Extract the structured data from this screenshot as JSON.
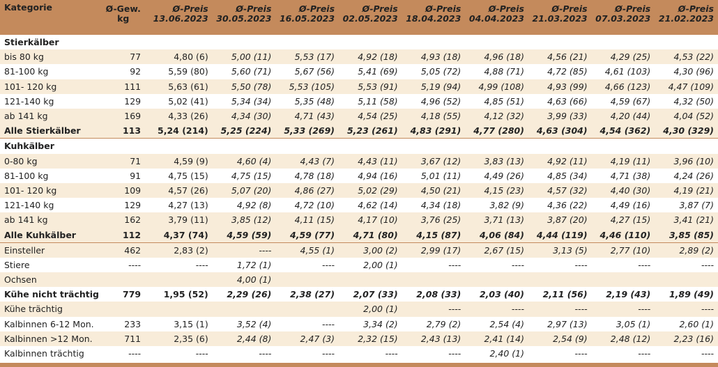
{
  "header": {
    "kategorie": "Kategorie",
    "gewicht_line1": "Ø-Gew.",
    "gewicht_line2": "kg",
    "preis_label": "Ø-Preis",
    "dates": [
      "13.06.2023",
      "30.05.2023",
      "16.05.2023",
      "02.05.2023",
      "18.04.2023",
      "04.04.2023",
      "21.03.2023",
      "07.03.2023",
      "21.02.2023"
    ]
  },
  "rows": [
    {
      "type": "section",
      "label": "Stierkälber"
    },
    {
      "type": "odd",
      "label": "bis 80 kg",
      "gew": "77",
      "values": [
        "4,80 (6)",
        "5,00 (11)",
        "5,53 (17)",
        "4,92 (18)",
        "4,93 (18)",
        "4,96 (18)",
        "4,56 (21)",
        "4,29 (25)",
        "4,53 (22)"
      ]
    },
    {
      "type": "even",
      "label": "81-100 kg",
      "gew": "92",
      "values": [
        "5,59 (80)",
        "5,60 (71)",
        "5,67 (56)",
        "5,41 (69)",
        "5,05 (72)",
        "4,88 (71)",
        "4,72 (85)",
        "4,61 (103)",
        "4,30 (96)"
      ]
    },
    {
      "type": "odd",
      "label": "101- 120 kg",
      "gew": "111",
      "values": [
        "5,63 (61)",
        "5,50 (78)",
        "5,53 (105)",
        "5,53 (91)",
        "5,19 (94)",
        "4,99 (108)",
        "4,93 (99)",
        "4,66 (123)",
        "4,47 (109)"
      ]
    },
    {
      "type": "even",
      "label": "121-140 kg",
      "gew": "129",
      "values": [
        "5,02 (41)",
        "5,34 (34)",
        "5,35 (48)",
        "5,11 (58)",
        "4,96 (52)",
        "4,85 (51)",
        "4,63 (66)",
        "4,59 (67)",
        "4,32 (50)"
      ]
    },
    {
      "type": "odd",
      "label": "ab 141 kg",
      "gew": "169",
      "values": [
        "4,33 (26)",
        "4,34 (30)",
        "4,71 (43)",
        "4,54 (25)",
        "4,18 (55)",
        "4,12 (32)",
        "3,99 (33)",
        "4,20 (44)",
        "4,04 (52)"
      ]
    },
    {
      "type": "total",
      "label": "Alle Stierkälber",
      "gew": "113",
      "values": [
        "5,24 (214)",
        "5,25 (224)",
        "5,33 (269)",
        "5,23 (261)",
        "4,83 (291)",
        "4,77 (280)",
        "4,63 (304)",
        "4,54 (362)",
        "4,30 (329)"
      ]
    },
    {
      "type": "section",
      "label": "Kuhkälber"
    },
    {
      "type": "odd",
      "label": "0-80 kg",
      "gew": "71",
      "values": [
        "4,59 (9)",
        "4,60 (4)",
        "4,43 (7)",
        "4,43 (11)",
        "3,67 (12)",
        "3,83 (13)",
        "4,92 (11)",
        "4,19 (11)",
        "3,96 (10)"
      ]
    },
    {
      "type": "even",
      "label": "81-100 kg",
      "gew": "91",
      "values": [
        "4,75 (15)",
        "4,75 (15)",
        "4,78 (18)",
        "4,94 (16)",
        "5,01 (11)",
        "4,49 (26)",
        "4,85 (34)",
        "4,71 (38)",
        "4,24 (26)"
      ]
    },
    {
      "type": "odd",
      "label": "101- 120 kg",
      "gew": "109",
      "values": [
        "4,57 (26)",
        "5,07 (20)",
        "4,86 (27)",
        "5,02 (29)",
        "4,50 (21)",
        "4,15 (23)",
        "4,57 (32)",
        "4,40 (30)",
        "4,19 (21)"
      ]
    },
    {
      "type": "even",
      "label": "121-140 kg",
      "gew": "129",
      "values": [
        "4,27 (13)",
        "4,92 (8)",
        "4,72 (10)",
        "4,62 (14)",
        "4,34 (18)",
        "3,82 (9)",
        "4,36 (22)",
        "4,49 (16)",
        "3,87 (7)"
      ]
    },
    {
      "type": "odd",
      "label": "ab 141 kg",
      "gew": "162",
      "values": [
        "3,79 (11)",
        "3,85 (12)",
        "4,11 (15)",
        "4,17 (10)",
        "3,76 (25)",
        "3,71 (13)",
        "3,87 (20)",
        "4,27 (15)",
        "3,41 (21)"
      ]
    },
    {
      "type": "total",
      "label": "Alle Kuhkälber",
      "gew": "112",
      "values": [
        "4,37 (74)",
        "4,59 (59)",
        "4,59 (77)",
        "4,71 (80)",
        "4,15 (87)",
        "4,06 (84)",
        "4,44 (119)",
        "4,46 (110)",
        "3,85 (85)"
      ]
    },
    {
      "type": "odd",
      "label": "Einsteller",
      "gew": "462",
      "values": [
        "2,83 (2)",
        "----",
        "4,55 (1)",
        "3,00 (2)",
        "2,99 (17)",
        "2,67 (15)",
        "3,13 (5)",
        "2,77 (10)",
        "2,89 (2)"
      ]
    },
    {
      "type": "even",
      "label": "Stiere",
      "gew": "----",
      "values": [
        "----",
        "1,72 (1)",
        "----",
        "2,00 (1)",
        "----",
        "----",
        "----",
        "----",
        "----"
      ]
    },
    {
      "type": "odd",
      "label": "Ochsen",
      "gew": "",
      "values": [
        "",
        "4,00 (1)",
        "",
        "",
        "",
        "",
        "",
        "",
        ""
      ]
    },
    {
      "type": "even-bold",
      "label": "Kühe nicht trächtig",
      "gew": "779",
      "values": [
        "1,95 (52)",
        "2,29 (26)",
        "2,38 (27)",
        "2,07 (33)",
        "2,08 (33)",
        "2,03 (40)",
        "2,11 (56)",
        "2,19 (43)",
        "1,89 (49)"
      ]
    },
    {
      "type": "odd",
      "label": "Kühe trächtig",
      "gew": "",
      "values": [
        "",
        "",
        "",
        "2,00 (1)",
        "----",
        "----",
        "----",
        "----",
        "----"
      ]
    },
    {
      "type": "even",
      "label": "Kalbinnen 6-12 Mon.",
      "gew": "233",
      "values": [
        "3,15 (1)",
        "3,52 (4)",
        "----",
        "3,34 (2)",
        "2,79 (2)",
        "2,54 (4)",
        "2,97 (13)",
        "3,05 (1)",
        "2,60 (1)"
      ]
    },
    {
      "type": "odd",
      "label": "Kalbinnen >12 Mon.",
      "gew": "711",
      "values": [
        "2,35 (6)",
        "2,44 (8)",
        "2,47 (3)",
        "2,32 (15)",
        "2,43 (13)",
        "2,41 (14)",
        "2,54 (9)",
        "2,48 (12)",
        "2,23 (16)"
      ]
    },
    {
      "type": "even",
      "label": "Kalbinnen trächtig",
      "gew": "----",
      "values": [
        "----",
        "----",
        "----",
        "----",
        "----",
        "2,40 (1)",
        "----",
        "----",
        "----"
      ]
    }
  ]
}
